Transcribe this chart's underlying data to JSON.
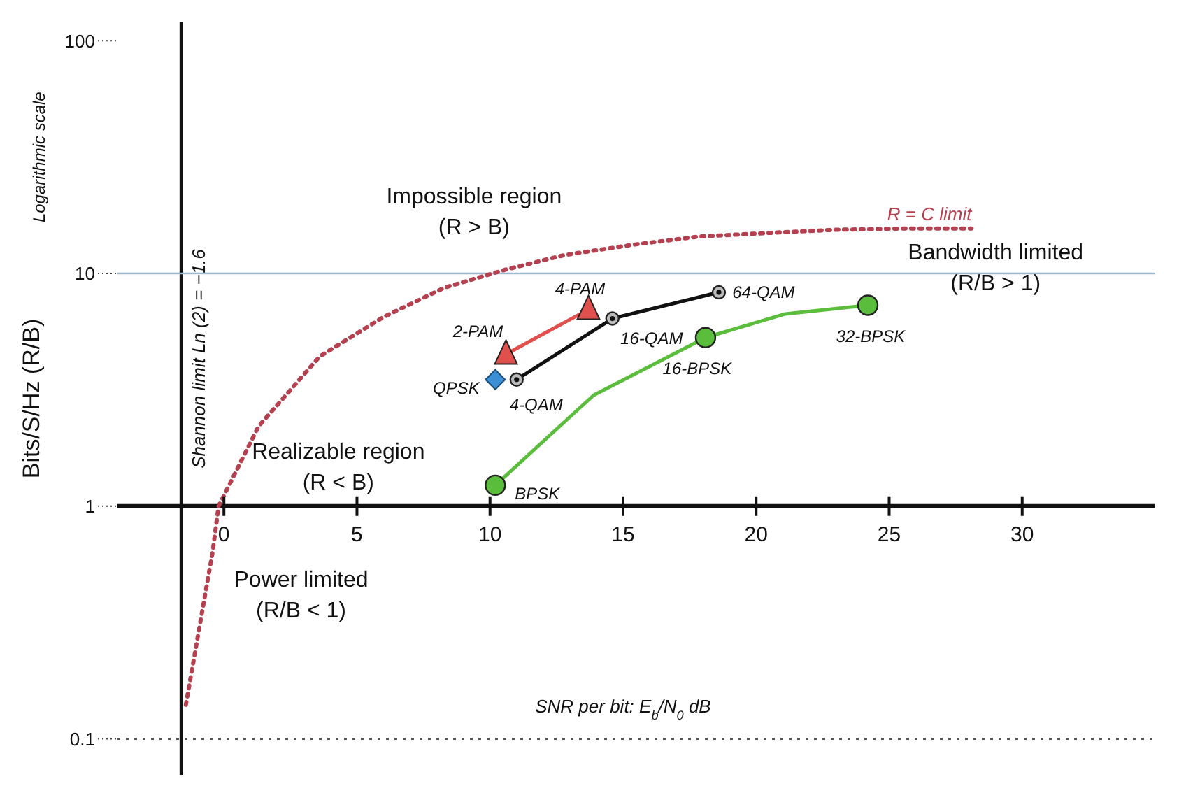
{
  "chart_data": {
    "type": "line",
    "xlabel": "SNR per bit: E$_{b}$/N$_{0}$ dB",
    "ylabel": "Bits/S/Hz (R/B)",
    "xlim": [
      -4,
      35
    ],
    "xticks": [
      0,
      5,
      10,
      15,
      20,
      25,
      30
    ],
    "ylim": [
      0.07,
      120
    ],
    "yticks": [
      0.1,
      1,
      10,
      100
    ],
    "log": "y",
    "legend": false,
    "grid": false,
    "series": [
      {
        "name": "R = C limit",
        "color": "#b5404f",
        "marker": "none",
        "line_style": "dotted",
        "x": [
          -1.43,
          -0.97,
          -0.42,
          -0.2,
          1.3,
          3.6,
          6.0,
          8.3,
          10.6,
          12.8,
          15.4,
          17.8,
          20.3,
          22.9,
          25.5,
          28.1
        ],
        "values": [
          0.14,
          0.28,
          0.64,
          1,
          2.2,
          4.4,
          6.5,
          8.7,
          10.4,
          12.0,
          13.3,
          14.4,
          14.9,
          15.4,
          15.6,
          15.6
        ]
      },
      {
        "color": "#e0504c",
        "marker": "triangle",
        "line_style": "solid",
        "x": [
          10.6,
          13.7
        ],
        "values": [
          4.5,
          7.0
        ]
      },
      {
        "color": "#111111",
        "marker": "circle",
        "line_style": "solid",
        "x": [
          11.0,
          14.6,
          18.6
        ],
        "values": [
          3.5,
          6.4,
          8.3
        ]
      },
      {
        "type": "scatter",
        "color": "#3b8fd4",
        "marker": "diamond",
        "x": [
          10.2
        ],
        "values": [
          3.5
        ]
      },
      {
        "color": "#5bbd3c",
        "marker": "none",
        "line_style": "solid",
        "x": [
          10.2,
          13.9,
          18.1,
          21.1,
          24.2
        ],
        "values": [
          1.23,
          3.0,
          5.3,
          6.7,
          7.3
        ]
      },
      {
        "type": "scatter",
        "color": "#5bbd3c",
        "marker": "circle",
        "x": [
          10.2,
          18.1,
          24.2
        ],
        "values": [
          1.23,
          5.3,
          7.3
        ]
      }
    ],
    "ref_lines": [
      {
        "axis": "x",
        "value": -1.6,
        "label": "Shannon limit Ln (2) = −1.6",
        "color": "#111111",
        "line_style": "solid"
      },
      {
        "axis": "y",
        "value": 10,
        "color": "#9fb8cc",
        "line_style": "solid"
      },
      {
        "axis": "y",
        "value": 0.1,
        "color": "#555555",
        "line_style": "dotted"
      }
    ],
    "annotations": [
      "Impossible region\n(R > B)",
      "Realizable region\n(R < B)",
      "Power limited\n(R/B < 1)",
      "Bandwidth limited\n(R/B > 1)",
      "Logarithmic scale",
      {
        "text": "2-PAM",
        "x": 10.6,
        "y": 4.5
      },
      {
        "text": "4-PAM",
        "x": 13.7,
        "y": 7.0
      },
      {
        "text": "QPSK",
        "x": 10.2,
        "y": 3.5
      },
      {
        "text": "4-QAM",
        "x": 11.0,
        "y": 3.5
      },
      {
        "text": "16-QAM",
        "x": 14.6,
        "y": 6.4
      },
      {
        "text": "64-QAM",
        "x": 18.6,
        "y": 8.3
      },
      {
        "text": "BPSK",
        "x": 10.2,
        "y": 1.23
      },
      {
        "text": "16-BPSK",
        "x": 18.1,
        "y": 5.3
      },
      {
        "text": "32-BPSK",
        "x": 24.2,
        "y": 7.3
      }
    ]
  }
}
